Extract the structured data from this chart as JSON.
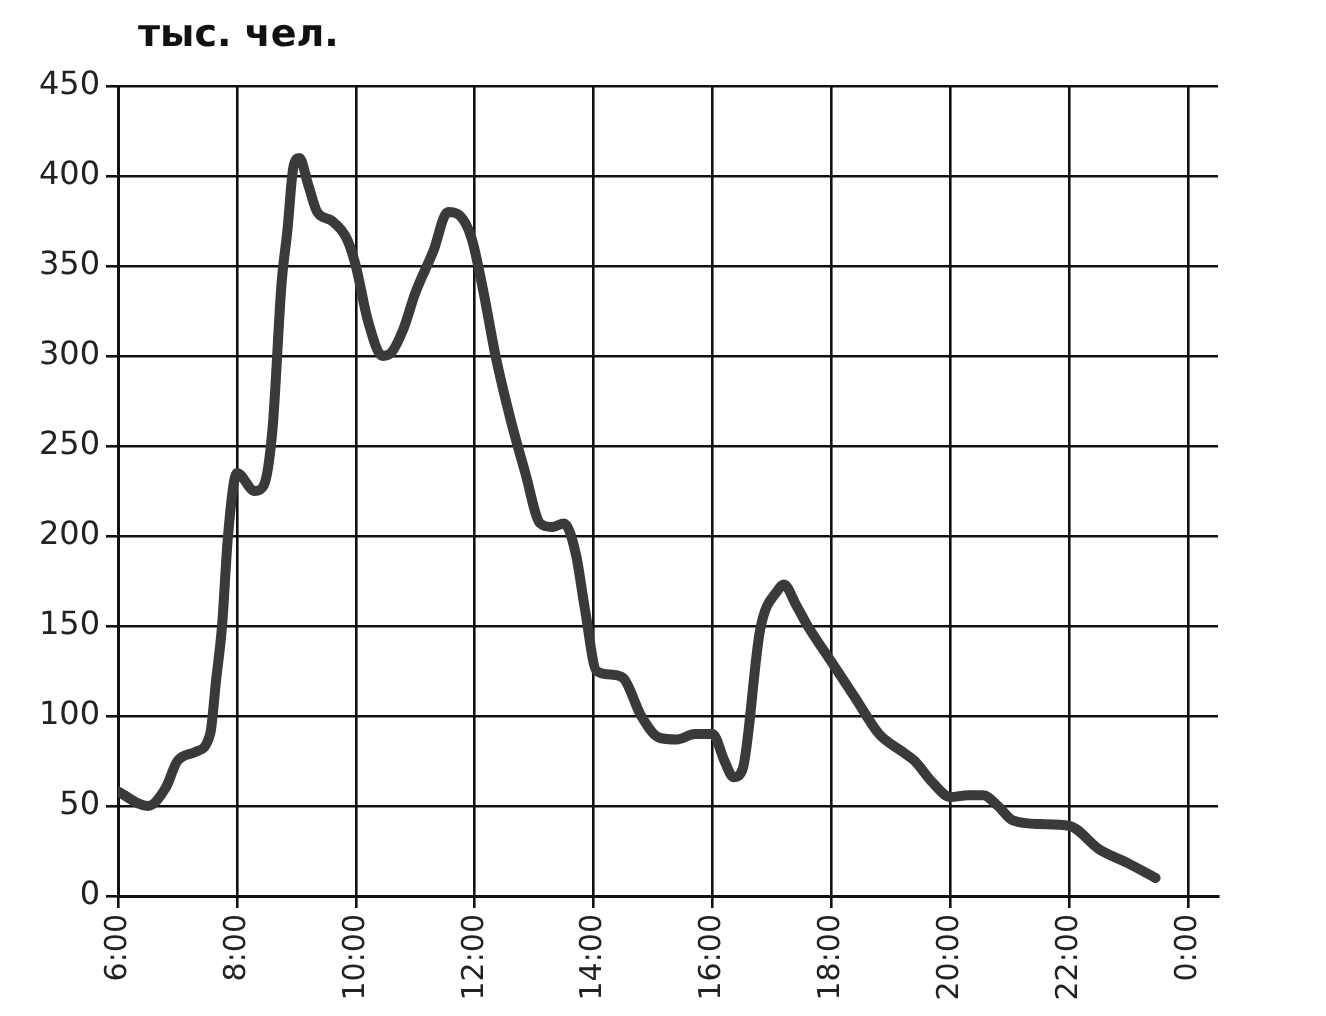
{
  "chart_data": {
    "type": "line",
    "ylabel": "тыс. чел.",
    "xlim": [
      6,
      24.5
    ],
    "ylim": [
      0,
      450
    ],
    "xticks": [
      {
        "value": 6,
        "label": "6:00"
      },
      {
        "value": 8,
        "label": "8:00"
      },
      {
        "value": 10,
        "label": "10:00"
      },
      {
        "value": 12,
        "label": "12:00"
      },
      {
        "value": 14,
        "label": "14:00"
      },
      {
        "value": 16,
        "label": "16:00"
      },
      {
        "value": 18,
        "label": "18:00"
      },
      {
        "value": 20,
        "label": "20:00"
      },
      {
        "value": 22,
        "label": "22:00"
      },
      {
        "value": 24,
        "label": "0:00"
      }
    ],
    "yticks": [
      0,
      50,
      100,
      150,
      200,
      250,
      300,
      350,
      400,
      450
    ],
    "grid": true,
    "legend": false,
    "marker": "none",
    "line_style": "solid",
    "series": [
      {
        "color": "#3a3a3a",
        "x": [
          6.0,
          6.5,
          6.8,
          7.0,
          7.3,
          7.55,
          7.65,
          7.75,
          7.85,
          8.0,
          8.3,
          8.45,
          8.6,
          8.75,
          8.85,
          8.95,
          9.05,
          9.2,
          9.35,
          9.6,
          9.85,
          10.0,
          10.2,
          10.45,
          10.6,
          10.8,
          11.0,
          11.3,
          11.55,
          11.75,
          11.95,
          12.15,
          12.35,
          12.6,
          12.85,
          13.1,
          13.3,
          13.5,
          13.7,
          13.85,
          14.05,
          14.3,
          14.5,
          14.8,
          15.1,
          15.4,
          15.7,
          16.0,
          16.2,
          16.35,
          16.5,
          16.8,
          17.1,
          17.2,
          17.4,
          17.6,
          18.0,
          18.4,
          18.8,
          19.2,
          19.4,
          19.7,
          20.0,
          20.3,
          20.55,
          20.8,
          21.05,
          21.5,
          22.0,
          22.5,
          23.0,
          23.45
        ],
        "values": [
          58,
          50,
          60,
          75,
          80,
          90,
          120,
          150,
          200,
          235,
          225,
          228,
          260,
          340,
          370,
          405,
          410,
          395,
          380,
          375,
          365,
          350,
          320,
          300,
          302,
          315,
          335,
          358,
          380,
          378,
          365,
          335,
          300,
          265,
          235,
          207,
          205,
          207,
          190,
          160,
          125,
          123,
          121,
          100,
          88,
          87,
          90,
          90,
          75,
          66,
          70,
          148,
          170,
          173,
          162,
          150,
          130,
          110,
          90,
          80,
          75,
          63,
          55,
          56,
          56,
          50,
          42,
          40,
          39,
          26,
          18,
          10
        ]
      }
    ]
  }
}
